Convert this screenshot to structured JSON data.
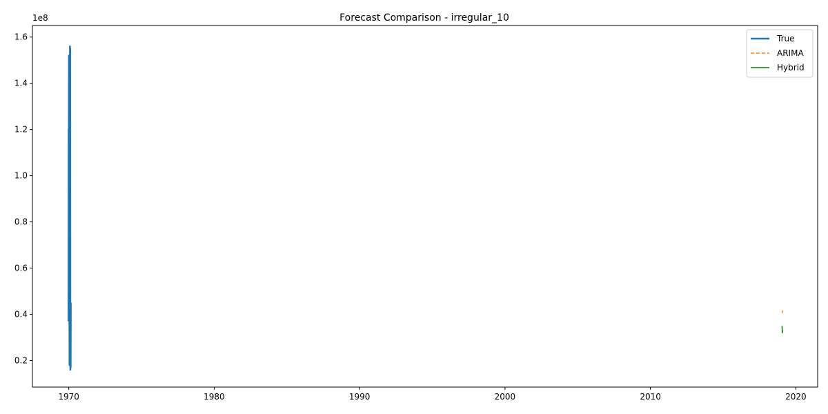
{
  "chart_data": {
    "type": "line",
    "title": "Forecast Comparison - irregular_10",
    "xlabel": "",
    "ylabel": "",
    "y_offset_label": "1e8",
    "xlim": [
      1967.5,
      2021.5
    ],
    "ylim": [
      8500000,
      165000000
    ],
    "x_ticks": [
      1970,
      1980,
      1990,
      2000,
      2010,
      2020
    ],
    "x_tick_labels": [
      "1970",
      "1980",
      "1990",
      "2000",
      "2010",
      "2020"
    ],
    "y_ticks": [
      20000000,
      40000000,
      60000000,
      80000000,
      100000000,
      120000000,
      140000000,
      160000000
    ],
    "y_tick_labels": [
      "0.2",
      "0.4",
      "0.6",
      "0.8",
      "1.0",
      "1.2",
      "1.4",
      "1.6"
    ],
    "grid": false,
    "legend_position": "top-right",
    "series": [
      {
        "name": "True",
        "color": "#1f77b4",
        "style": "solid",
        "width": 2.5,
        "x": [
          1969.98,
          1969.99,
          1970.0,
          1970.01,
          1970.02,
          1970.03,
          1970.04,
          1970.05,
          1970.06,
          1970.07,
          1970.08,
          1970.09,
          1970.1,
          1970.11,
          1970.12,
          1970.13,
          1970.14
        ],
        "y": [
          37000000,
          120000000,
          93000000,
          152000000,
          40000000,
          133000000,
          46000000,
          18000000,
          148000000,
          30000000,
          156000000,
          20000000,
          155000000,
          16000000,
          42000000,
          17000000,
          45000000
        ]
      },
      {
        "name": "ARIMA",
        "color": "#ff7f0e",
        "style": "dashed",
        "width": 1.5,
        "x": [
          2019.05,
          2019.07,
          2019.09
        ],
        "y": [
          40500000,
          41500000,
          41000000
        ]
      },
      {
        "name": "Hybrid",
        "color": "#008000",
        "style": "solid",
        "width": 1.5,
        "x": [
          2019.05,
          2019.07,
          2019.09
        ],
        "y": [
          35000000,
          32000000,
          33000000
        ]
      }
    ]
  }
}
